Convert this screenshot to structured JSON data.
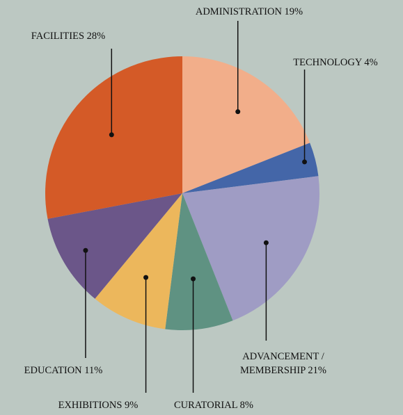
{
  "chart_data": {
    "type": "pie",
    "categories": [
      "ADMINISTRATION",
      "TECHNOLOGY",
      "ADVANCEMENT / MEMBERSHIP",
      "CURATORIAL",
      "EXHIBITIONS",
      "EDUCATION",
      "FACILITIES"
    ],
    "values": [
      19,
      4,
      21,
      8,
      9,
      11,
      28
    ],
    "value_labels": [
      "19%",
      "4%",
      "21%",
      "8%",
      "9%",
      "11%",
      "28%"
    ],
    "colors": [
      "#f2ae8a",
      "#4466a8",
      "#9f9cc4",
      "#5f9282",
      "#ecb75c",
      "#6b5689",
      "#d45a27"
    ]
  }
}
